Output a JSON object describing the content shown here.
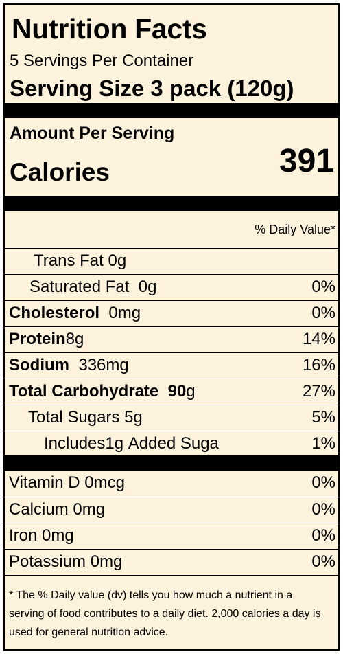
{
  "header": {
    "title": "Nutrition Facts",
    "servings_per_container": "5 Servings Per Container",
    "serving_size": "Serving Size  3 pack (120g)"
  },
  "calories": {
    "amount_per_serving": "Amount Per Serving",
    "label": "Calories",
    "value": "391"
  },
  "daily_value_header": "% Daily Value*",
  "nutrients": {
    "trans_fat": {
      "label": "Trans Fat",
      "amount": "0g",
      "percent": ""
    },
    "saturated_fat": {
      "label": "Saturated Fat",
      "amount": "0g",
      "percent": "0%"
    },
    "cholesterol": {
      "label": "Cholesterol",
      "amount": "0mg",
      "percent": "0%"
    },
    "protein": {
      "label": "Protein",
      "amount": "8g",
      "percent": "14%"
    },
    "sodium": {
      "label": "Sodium",
      "amount": "336mg",
      "percent": "16%"
    },
    "total_carbohydrate": {
      "label": "Total Carbohydrate",
      "amount_bold": "90",
      "amount_unit": "g",
      "percent": "27%"
    },
    "total_sugars": {
      "label": "Total Sugars",
      "amount": "5g",
      "percent": "5%"
    },
    "added_sugars": {
      "label": "Includes",
      "amount": "1g",
      "text": "Added Suga",
      "percent": "1%"
    }
  },
  "vitamins": {
    "vitamin_d": {
      "label": "Vitamin D",
      "amount": "0mcg",
      "percent": "0%"
    },
    "calcium": {
      "label": "Calcium",
      "amount": "0mg",
      "percent": "0%"
    },
    "iron": {
      "label": "Iron",
      "amount": "0mg",
      "percent": "0%"
    },
    "potassium": {
      "label": "Potassium",
      "amount": "0mg",
      "percent": "0%"
    }
  },
  "footnote": "* The % Daily value (dv) tells you how much a nutrient in a serving of food contributes to a daily diet. 2,000 calories a day is used for general nutrition advice.",
  "colors": {
    "background": "#fdf2dc",
    "text": "#000000"
  }
}
